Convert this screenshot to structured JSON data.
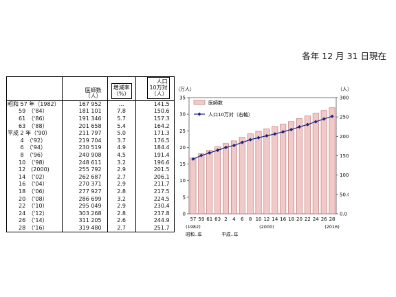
{
  "as_of": "各年 12 月 31 日現在",
  "table": {
    "headers": {
      "doctors": "医師数",
      "doctors_unit": "（人）",
      "rate": "増減率",
      "rate_unit": "（%）",
      "per_pop_1": "人口",
      "per_pop_2": "10万対",
      "per_pop_unit": "（人）"
    },
    "rows": [
      {
        "year": "昭和 57 年（1982）",
        "doctors": "167 952",
        "rate": "…",
        "per": "141.5"
      },
      {
        "year": "　　59　（'84）",
        "doctors": "181 101",
        "rate": "7.8",
        "per": "150.6"
      },
      {
        "year": "　　61　（'86）",
        "doctors": "191 346",
        "rate": "5.7",
        "per": "157.3"
      },
      {
        "year": "　　63　（'88）",
        "doctors": "201 658",
        "rate": "5.4",
        "per": "164.2"
      },
      {
        "year": "平成  2 年（'90）",
        "doctors": "211 797",
        "rate": "5.0",
        "per": "171.3"
      },
      {
        "year": "　　 4　（'92）",
        "doctors": "219 704",
        "rate": "3.7",
        "per": "176.5"
      },
      {
        "year": "　　 6　（'94）",
        "doctors": "230 519",
        "rate": "4.9",
        "per": "184.4"
      },
      {
        "year": "　　 8　（'96）",
        "doctors": "240 908",
        "rate": "4.5",
        "per": "191.4"
      },
      {
        "year": "　　10　（'98）",
        "doctors": "248 611",
        "rate": "3.2",
        "per": "196.6"
      },
      {
        "year": "　　12　(2000)",
        "doctors": "255 792",
        "rate": "2.9",
        "per": "201.5"
      },
      {
        "year": "　　14　（'02）",
        "doctors": "262 687",
        "rate": "2.7",
        "per": "206.1"
      },
      {
        "year": "　　16　（'04）",
        "doctors": "270 371",
        "rate": "2.9",
        "per": "211.7"
      },
      {
        "year": "　　18　（'06）",
        "doctors": "277 927",
        "rate": "2.8",
        "per": "217.5"
      },
      {
        "year": "　　20　（'08）",
        "doctors": "286 699",
        "rate": "3.2",
        "per": "224.5"
      },
      {
        "year": "　　22　（'10）",
        "doctors": "295 049",
        "rate": "2.9",
        "per": "230.4"
      },
      {
        "year": "　　24　（'12）",
        "doctors": "303 268",
        "rate": "2.8",
        "per": "237.8"
      },
      {
        "year": "　　26　（'14）",
        "doctors": "311 205",
        "rate": "2.6",
        "per": "244.9"
      },
      {
        "year": "　　28　（'16）",
        "doctors": "319 480",
        "rate": "2.7",
        "per": "251.7"
      }
    ]
  },
  "chart_data": {
    "type": "bar",
    "categories": [
      "57",
      "59",
      "61",
      "63",
      "2",
      "4",
      "6",
      "8",
      "10",
      "12",
      "14",
      "16",
      "18",
      "20",
      "22",
      "24",
      "26",
      "28"
    ],
    "left_unit": "（万人）",
    "right_unit": "（人）",
    "ylim_left": [
      0,
      35
    ],
    "ylim_right": [
      0,
      300
    ],
    "left_ticks": [
      "0",
      "5",
      "10",
      "15",
      "20",
      "25",
      "30",
      "35"
    ],
    "right_ticks": [
      "0.0",
      "50.0",
      "100.0",
      "150.0",
      "200.0",
      "250.0",
      "300.0"
    ],
    "x_sub_left": "(1982)",
    "x_sub_mid": "(2000)",
    "x_sub_right": "(2016)",
    "era_showa": "昭和‥年",
    "era_heisei": "平成‥年",
    "series": [
      {
        "name": "医師数",
        "type": "bar",
        "axis": "left",
        "color": "#f2c9c9",
        "stroke": "#b56a6a",
        "values": [
          16.7952,
          18.1101,
          19.1346,
          20.1658,
          21.1797,
          21.9704,
          23.0519,
          24.0908,
          24.8611,
          25.5792,
          26.2687,
          27.0371,
          27.7927,
          28.6699,
          29.5049,
          30.3268,
          31.1205,
          31.948
        ]
      },
      {
        "name": "人口10万対（右軸）",
        "type": "line",
        "axis": "right",
        "color": "#1a237e",
        "values": [
          141.5,
          150.6,
          157.3,
          164.2,
          171.3,
          176.5,
          184.4,
          191.4,
          196.6,
          201.5,
          206.1,
          211.7,
          217.5,
          224.5,
          230.4,
          237.8,
          244.9,
          251.7
        ]
      }
    ],
    "grid": false,
    "legend": "top-left"
  }
}
